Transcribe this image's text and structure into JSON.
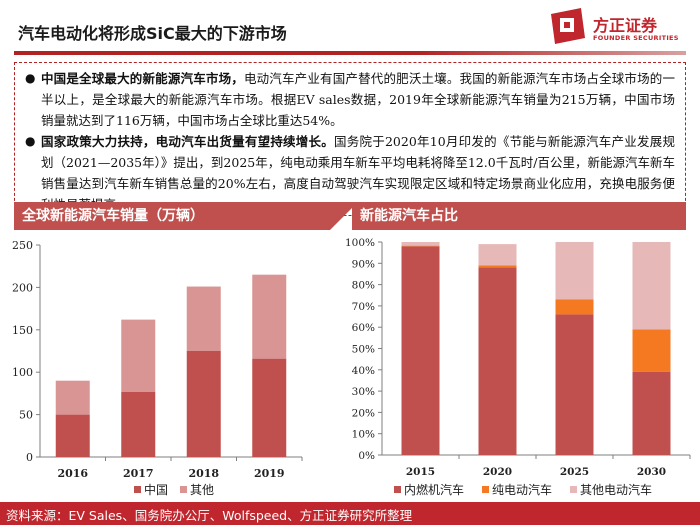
{
  "header": {
    "title": "汽车电动化将形成SiC最大的下游市场",
    "logo_text": "方正证券",
    "logo_subtext": "FOUNDER SECURITIES",
    "accent_color": "#b22222"
  },
  "summary": {
    "bullets": [
      {
        "bold": "中国是全球最大的新能源汽车市场，",
        "text": "电动汽车产业有国产替代的肥沃土壤。我国的新能源汽车市场占全球市场的一半以上，是全球最大的新能源汽车市场。根据EV sales数据，2019年全球新能源汽车销量为215万辆，中国市场销量就达到了116万辆，中国市场占全球比重达54%。"
      },
      {
        "bold": "国家政策大力扶持，电动汽车出货量有望持续增长。",
        "text": "国务院于2020年10月印发的《节能与新能源汽车产业发展规划（2021—2035年）》提出，到2025年，纯电动乘用车新车平均电耗将降至12.0千瓦时/百公里，新能源汽车新车销售量达到汽车新车销售总量的20%左右，高度自动驾驶汽车实现限定区域和特定场景商业化应用，充换电服务便利性显著提高。"
      }
    ]
  },
  "left_panel": {
    "title": "全球新能源汽车销量（万辆）"
  },
  "right_panel": {
    "title": "新能源汽车占比"
  },
  "chart_data": [
    {
      "type": "bar",
      "stacked": true,
      "title": "全球新能源汽车销量（万辆）",
      "categories": [
        "2016",
        "2017",
        "2018",
        "2019"
      ],
      "series": [
        {
          "name": "中国",
          "values": [
            50,
            77,
            125,
            116
          ],
          "color": "#c0504d"
        },
        {
          "name": "其他",
          "values": [
            40,
            85,
            76,
            99
          ],
          "color": "#d99594"
        }
      ],
      "ylim": [
        0,
        250
      ],
      "yticks": [
        "0",
        "50",
        "100",
        "150",
        "200",
        "250"
      ],
      "legend": "bottom"
    },
    {
      "type": "bar",
      "stacked": true,
      "title": "新能源汽车占比",
      "categories": [
        "2015",
        "2020",
        "2025",
        "2030"
      ],
      "series": [
        {
          "name": "内燃机汽车",
          "values": [
            98,
            88,
            66,
            39
          ],
          "color": "#c0504d"
        },
        {
          "name": "纯电动汽车",
          "values": [
            0.3,
            1,
            7,
            20
          ],
          "color": "#f47920"
        },
        {
          "name": "其他电动汽车",
          "values": [
            1.7,
            10,
            27,
            41
          ],
          "color": "#e6b8b7"
        }
      ],
      "ylim": [
        0,
        100
      ],
      "yticks": [
        "0%",
        "10%",
        "20%",
        "30%",
        "40%",
        "50%",
        "60%",
        "70%",
        "80%",
        "90%",
        "100%"
      ],
      "legend": "bottom"
    }
  ],
  "footer": {
    "source": "资料来源：EV Sales、国务院办公厅、Wolfspeed、方正证券研究所整理"
  }
}
